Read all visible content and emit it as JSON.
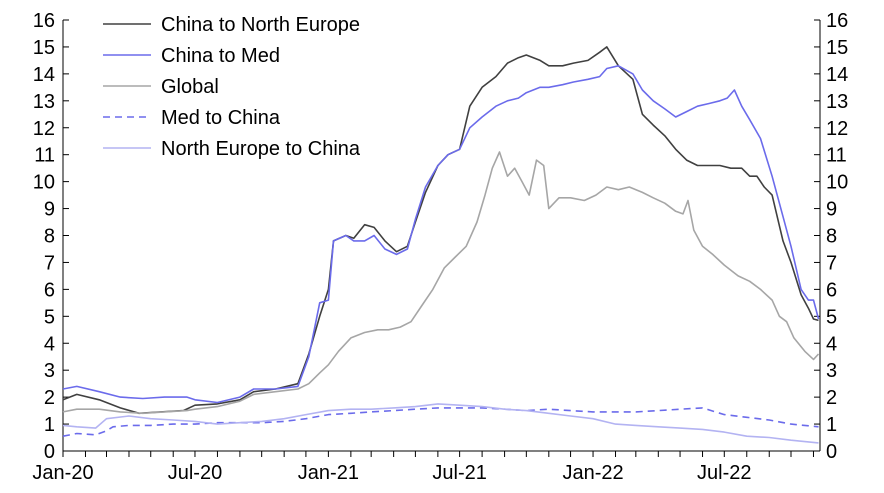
{
  "chart_data": {
    "type": "line",
    "y_ticks_left": [
      "0",
      "1",
      "2",
      "3",
      "4",
      "5",
      "6",
      "7",
      "8",
      "9",
      "10",
      "11",
      "12",
      "13",
      "14",
      "15",
      "16"
    ],
    "y_ticks_right": [
      "0",
      "1",
      "2",
      "3",
      "4",
      "5",
      "6",
      "7",
      "8",
      "9",
      "10",
      "11",
      "12",
      "13",
      "14",
      "15",
      "16"
    ],
    "x_ticks": [
      "Jan-20",
      "Jul-20",
      "Jan-21",
      "Jul-21",
      "Jan-22",
      "Jul-22"
    ],
    "xlim": [
      "2020-01-01",
      "2022-11-10"
    ],
    "ylim": [
      0,
      16
    ],
    "grid": false,
    "legend_position": "top-left",
    "series": [
      {
        "name": "China to North Europe",
        "color": "#404040",
        "dash": "solid",
        "points": [
          [
            "2020-01-01",
            1.9
          ],
          [
            "2020-01-20",
            2.1
          ],
          [
            "2020-02-20",
            1.9
          ],
          [
            "2020-03-20",
            1.6
          ],
          [
            "2020-04-15",
            1.4
          ],
          [
            "2020-05-15",
            1.45
          ],
          [
            "2020-06-15",
            1.5
          ],
          [
            "2020-07-01",
            1.7
          ],
          [
            "2020-08-01",
            1.75
          ],
          [
            "2020-09-01",
            1.9
          ],
          [
            "2020-09-20",
            2.2
          ],
          [
            "2020-10-20",
            2.3
          ],
          [
            "2020-11-20",
            2.5
          ],
          [
            "2020-12-05",
            3.6
          ],
          [
            "2020-12-20",
            5.0
          ],
          [
            "2021-01-01",
            6.0
          ],
          [
            "2021-01-08",
            7.8
          ],
          [
            "2021-01-25",
            8.0
          ],
          [
            "2021-02-05",
            7.9
          ],
          [
            "2021-02-20",
            8.4
          ],
          [
            "2021-03-05",
            8.3
          ],
          [
            "2021-03-20",
            7.8
          ],
          [
            "2021-04-05",
            7.4
          ],
          [
            "2021-04-20",
            7.6
          ],
          [
            "2021-05-01",
            8.5
          ],
          [
            "2021-05-15",
            9.6
          ],
          [
            "2021-06-01",
            10.6
          ],
          [
            "2021-06-15",
            11.0
          ],
          [
            "2021-07-01",
            11.2
          ],
          [
            "2021-07-15",
            12.8
          ],
          [
            "2021-08-01",
            13.5
          ],
          [
            "2021-08-20",
            13.9
          ],
          [
            "2021-09-05",
            14.4
          ],
          [
            "2021-09-20",
            14.6
          ],
          [
            "2021-10-01",
            14.7
          ],
          [
            "2021-10-20",
            14.5
          ],
          [
            "2021-11-01",
            14.3
          ],
          [
            "2021-11-20",
            14.3
          ],
          [
            "2021-12-05",
            14.4
          ],
          [
            "2021-12-25",
            14.5
          ],
          [
            "2022-01-10",
            14.8
          ],
          [
            "2022-01-20",
            15.0
          ],
          [
            "2022-02-05",
            14.3
          ],
          [
            "2022-02-25",
            13.8
          ],
          [
            "2022-03-10",
            12.5
          ],
          [
            "2022-03-25",
            12.1
          ],
          [
            "2022-04-10",
            11.7
          ],
          [
            "2022-04-25",
            11.2
          ],
          [
            "2022-05-10",
            10.8
          ],
          [
            "2022-05-25",
            10.6
          ],
          [
            "2022-06-10",
            10.6
          ],
          [
            "2022-06-25",
            10.6
          ],
          [
            "2022-07-10",
            10.5
          ],
          [
            "2022-07-25",
            10.5
          ],
          [
            "2022-08-05",
            10.2
          ],
          [
            "2022-08-15",
            10.2
          ],
          [
            "2022-08-25",
            9.8
          ],
          [
            "2022-09-05",
            9.5
          ],
          [
            "2022-09-20",
            7.8
          ],
          [
            "2022-10-01",
            7.0
          ],
          [
            "2022-10-15",
            5.8
          ],
          [
            "2022-10-25",
            5.3
          ],
          [
            "2022-11-01",
            4.9
          ],
          [
            "2022-11-08",
            4.85
          ]
        ]
      },
      {
        "name": "China to Med",
        "color": "#6B6BEB",
        "dash": "solid",
        "points": [
          [
            "2020-01-01",
            2.3
          ],
          [
            "2020-01-20",
            2.4
          ],
          [
            "2020-02-20",
            2.2
          ],
          [
            "2020-03-20",
            2.0
          ],
          [
            "2020-04-20",
            1.95
          ],
          [
            "2020-05-20",
            2.0
          ],
          [
            "2020-06-20",
            2.0
          ],
          [
            "2020-07-01",
            1.9
          ],
          [
            "2020-08-01",
            1.8
          ],
          [
            "2020-09-01",
            2.0
          ],
          [
            "2020-09-20",
            2.3
          ],
          [
            "2020-10-20",
            2.3
          ],
          [
            "2020-11-20",
            2.4
          ],
          [
            "2020-12-05",
            3.5
          ],
          [
            "2020-12-20",
            5.5
          ],
          [
            "2021-01-01",
            5.6
          ],
          [
            "2021-01-08",
            7.8
          ],
          [
            "2021-01-25",
            8.0
          ],
          [
            "2021-02-05",
            7.8
          ],
          [
            "2021-02-20",
            7.8
          ],
          [
            "2021-03-05",
            8.0
          ],
          [
            "2021-03-20",
            7.5
          ],
          [
            "2021-04-05",
            7.3
          ],
          [
            "2021-04-20",
            7.5
          ],
          [
            "2021-05-01",
            8.6
          ],
          [
            "2021-05-15",
            9.8
          ],
          [
            "2021-06-01",
            10.6
          ],
          [
            "2021-06-15",
            11.0
          ],
          [
            "2021-07-01",
            11.2
          ],
          [
            "2021-07-15",
            12.0
          ],
          [
            "2021-08-01",
            12.4
          ],
          [
            "2021-08-20",
            12.8
          ],
          [
            "2021-09-05",
            13.0
          ],
          [
            "2021-09-20",
            13.1
          ],
          [
            "2021-10-01",
            13.3
          ],
          [
            "2021-10-20",
            13.5
          ],
          [
            "2021-11-01",
            13.5
          ],
          [
            "2021-11-20",
            13.6
          ],
          [
            "2021-12-05",
            13.7
          ],
          [
            "2021-12-25",
            13.8
          ],
          [
            "2022-01-10",
            13.9
          ],
          [
            "2022-01-20",
            14.2
          ],
          [
            "2022-02-05",
            14.3
          ],
          [
            "2022-02-25",
            14.0
          ],
          [
            "2022-03-10",
            13.4
          ],
          [
            "2022-03-25",
            13.0
          ],
          [
            "2022-04-10",
            12.7
          ],
          [
            "2022-04-25",
            12.4
          ],
          [
            "2022-05-10",
            12.6
          ],
          [
            "2022-05-25",
            12.8
          ],
          [
            "2022-06-10",
            12.9
          ],
          [
            "2022-06-25",
            13.0
          ],
          [
            "2022-07-05",
            13.1
          ],
          [
            "2022-07-15",
            13.4
          ],
          [
            "2022-07-25",
            12.8
          ],
          [
            "2022-08-05",
            12.3
          ],
          [
            "2022-08-20",
            11.6
          ],
          [
            "2022-09-05",
            10.2
          ],
          [
            "2022-09-20",
            8.7
          ],
          [
            "2022-10-01",
            7.6
          ],
          [
            "2022-10-15",
            6.0
          ],
          [
            "2022-10-25",
            5.6
          ],
          [
            "2022-11-01",
            5.6
          ],
          [
            "2022-11-08",
            4.9
          ]
        ]
      },
      {
        "name": "Global",
        "color": "#A6A6A6",
        "dash": "solid",
        "points": [
          [
            "2020-01-01",
            1.45
          ],
          [
            "2020-01-20",
            1.55
          ],
          [
            "2020-02-20",
            1.55
          ],
          [
            "2020-03-20",
            1.45
          ],
          [
            "2020-04-20",
            1.4
          ],
          [
            "2020-05-20",
            1.45
          ],
          [
            "2020-06-20",
            1.5
          ],
          [
            "2020-07-01",
            1.55
          ],
          [
            "2020-08-01",
            1.65
          ],
          [
            "2020-09-01",
            1.85
          ],
          [
            "2020-09-20",
            2.1
          ],
          [
            "2020-10-20",
            2.2
          ],
          [
            "2020-11-20",
            2.3
          ],
          [
            "2020-12-05",
            2.5
          ],
          [
            "2020-12-20",
            2.9
          ],
          [
            "2021-01-01",
            3.2
          ],
          [
            "2021-01-15",
            3.7
          ],
          [
            "2021-02-01",
            4.2
          ],
          [
            "2021-02-20",
            4.4
          ],
          [
            "2021-03-10",
            4.5
          ],
          [
            "2021-03-25",
            4.5
          ],
          [
            "2021-04-10",
            4.6
          ],
          [
            "2021-04-25",
            4.8
          ],
          [
            "2021-05-10",
            5.4
          ],
          [
            "2021-05-25",
            6.0
          ],
          [
            "2021-06-10",
            6.8
          ],
          [
            "2021-06-25",
            7.2
          ],
          [
            "2021-07-10",
            7.6
          ],
          [
            "2021-07-25",
            8.5
          ],
          [
            "2021-08-05",
            9.5
          ],
          [
            "2021-08-15",
            10.5
          ],
          [
            "2021-08-25",
            11.1
          ],
          [
            "2021-09-05",
            10.2
          ],
          [
            "2021-09-15",
            10.5
          ],
          [
            "2021-09-25",
            10.0
          ],
          [
            "2021-10-05",
            9.5
          ],
          [
            "2021-10-15",
            10.8
          ],
          [
            "2021-10-25",
            10.6
          ],
          [
            "2021-11-01",
            9.0
          ],
          [
            "2021-11-15",
            9.4
          ],
          [
            "2021-12-01",
            9.4
          ],
          [
            "2021-12-20",
            9.3
          ],
          [
            "2022-01-05",
            9.5
          ],
          [
            "2022-01-20",
            9.8
          ],
          [
            "2022-02-05",
            9.7
          ],
          [
            "2022-02-20",
            9.8
          ],
          [
            "2022-03-10",
            9.6
          ],
          [
            "2022-03-25",
            9.4
          ],
          [
            "2022-04-10",
            9.2
          ],
          [
            "2022-04-25",
            8.9
          ],
          [
            "2022-05-05",
            8.8
          ],
          [
            "2022-05-12",
            9.3
          ],
          [
            "2022-05-20",
            8.2
          ],
          [
            "2022-06-01",
            7.6
          ],
          [
            "2022-06-15",
            7.3
          ],
          [
            "2022-07-01",
            6.9
          ],
          [
            "2022-07-20",
            6.5
          ],
          [
            "2022-08-05",
            6.3
          ],
          [
            "2022-08-20",
            6.0
          ],
          [
            "2022-09-05",
            5.6
          ],
          [
            "2022-09-15",
            5.0
          ],
          [
            "2022-09-25",
            4.8
          ],
          [
            "2022-10-05",
            4.2
          ],
          [
            "2022-10-20",
            3.7
          ],
          [
            "2022-11-01",
            3.4
          ],
          [
            "2022-11-08",
            3.6
          ]
        ]
      },
      {
        "name": "Med to China",
        "color": "#6B6BEB",
        "dash": "dashed",
        "points": [
          [
            "2020-01-01",
            0.55
          ],
          [
            "2020-01-20",
            0.65
          ],
          [
            "2020-02-15",
            0.6
          ],
          [
            "2020-03-01",
            0.75
          ],
          [
            "2020-03-10",
            0.9
          ],
          [
            "2020-04-01",
            0.95
          ],
          [
            "2020-05-01",
            0.95
          ],
          [
            "2020-06-01",
            1.0
          ],
          [
            "2020-07-01",
            1.0
          ],
          [
            "2020-08-01",
            1.05
          ],
          [
            "2020-09-01",
            1.05
          ],
          [
            "2020-10-01",
            1.05
          ],
          [
            "2020-11-01",
            1.1
          ],
          [
            "2020-12-01",
            1.2
          ],
          [
            "2021-01-01",
            1.35
          ],
          [
            "2021-02-01",
            1.4
          ],
          [
            "2021-03-01",
            1.45
          ],
          [
            "2021-04-01",
            1.5
          ],
          [
            "2021-05-01",
            1.55
          ],
          [
            "2021-06-01",
            1.6
          ],
          [
            "2021-07-01",
            1.6
          ],
          [
            "2021-08-01",
            1.6
          ],
          [
            "2021-09-01",
            1.55
          ],
          [
            "2021-10-01",
            1.5
          ],
          [
            "2021-11-01",
            1.55
          ],
          [
            "2021-12-01",
            1.5
          ],
          [
            "2022-01-01",
            1.45
          ],
          [
            "2022-02-01",
            1.45
          ],
          [
            "2022-03-01",
            1.45
          ],
          [
            "2022-04-01",
            1.5
          ],
          [
            "2022-05-01",
            1.55
          ],
          [
            "2022-06-01",
            1.6
          ],
          [
            "2022-07-01",
            1.35
          ],
          [
            "2022-08-01",
            1.25
          ],
          [
            "2022-09-01",
            1.15
          ],
          [
            "2022-10-01",
            1.0
          ],
          [
            "2022-11-08",
            0.9
          ]
        ]
      },
      {
        "name": "North Europe to China",
        "color": "#B3B3F2",
        "dash": "solid",
        "points": [
          [
            "2020-01-01",
            0.95
          ],
          [
            "2020-01-20",
            0.9
          ],
          [
            "2020-02-15",
            0.85
          ],
          [
            "2020-03-01",
            1.2
          ],
          [
            "2020-04-01",
            1.3
          ],
          [
            "2020-05-01",
            1.2
          ],
          [
            "2020-06-01",
            1.15
          ],
          [
            "2020-07-01",
            1.1
          ],
          [
            "2020-08-01",
            1.0
          ],
          [
            "2020-09-01",
            1.05
          ],
          [
            "2020-10-01",
            1.1
          ],
          [
            "2020-11-01",
            1.2
          ],
          [
            "2020-12-01",
            1.35
          ],
          [
            "2021-01-01",
            1.5
          ],
          [
            "2021-02-01",
            1.55
          ],
          [
            "2021-03-01",
            1.55
          ],
          [
            "2021-04-01",
            1.6
          ],
          [
            "2021-05-01",
            1.65
          ],
          [
            "2021-06-01",
            1.75
          ],
          [
            "2021-07-01",
            1.7
          ],
          [
            "2021-08-01",
            1.65
          ],
          [
            "2021-09-01",
            1.55
          ],
          [
            "2021-10-01",
            1.5
          ],
          [
            "2021-11-01",
            1.4
          ],
          [
            "2021-12-01",
            1.3
          ],
          [
            "2022-01-01",
            1.2
          ],
          [
            "2022-02-01",
            1.0
          ],
          [
            "2022-03-01",
            0.95
          ],
          [
            "2022-04-01",
            0.9
          ],
          [
            "2022-05-01",
            0.85
          ],
          [
            "2022-06-01",
            0.8
          ],
          [
            "2022-07-01",
            0.7
          ],
          [
            "2022-08-01",
            0.55
          ],
          [
            "2022-09-01",
            0.5
          ],
          [
            "2022-10-01",
            0.4
          ],
          [
            "2022-11-08",
            0.3
          ]
        ]
      }
    ]
  }
}
